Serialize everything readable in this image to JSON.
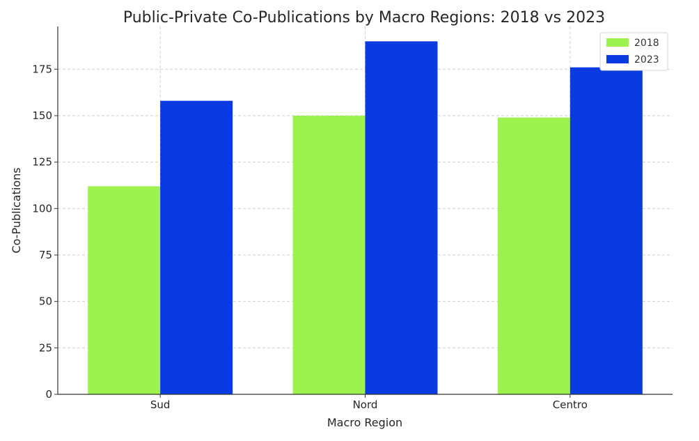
{
  "chart_data": {
    "type": "bar",
    "title": "Public-Private Co-Publications by Macro Regions: 2018 vs 2023",
    "xlabel": "Macro Region",
    "ylabel": "Co-Publications",
    "categories": [
      "Sud",
      "Nord",
      "Centro"
    ],
    "series": [
      {
        "name": "2018",
        "values": [
          112,
          150,
          149
        ],
        "color": "#9ef24f"
      },
      {
        "name": "2023",
        "values": [
          158,
          190,
          176
        ],
        "color": "#0a3be0"
      }
    ],
    "ylim": [
      0,
      198
    ],
    "yticks": [
      0,
      25,
      50,
      75,
      100,
      125,
      150,
      175
    ],
    "grid": true,
    "legend_position": "top-right"
  }
}
